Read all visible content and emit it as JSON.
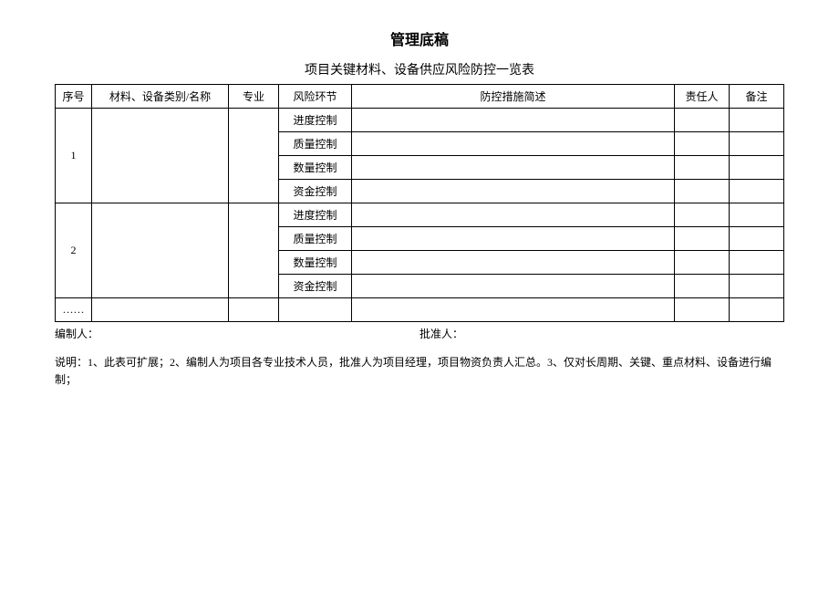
{
  "title": "管理底稿",
  "subtitle": "项目关键材料、设备供应风险防控一览表",
  "headers": {
    "seq": "序号",
    "name": "材料、设备类别/名称",
    "major": "专业",
    "risk": "风险环节",
    "measure": "防控措施简述",
    "person": "责任人",
    "remark": "备注"
  },
  "groups": [
    {
      "seq": "1",
      "name": "",
      "major": "",
      "risks": [
        "进度控制",
        "质量控制",
        "数量控制",
        "资金控制"
      ]
    },
    {
      "seq": "2",
      "name": "",
      "major": "",
      "risks": [
        "进度控制",
        "质量控制",
        "数量控制",
        "资金控制"
      ]
    }
  ],
  "ellipsis": "……",
  "footer": {
    "compiler": "编制人：",
    "approver": "批准人："
  },
  "note": "说明：1、此表可扩展；2、编制人为项目各专业技术人员，批准人为项目经理，项目物资负责人汇总。3、仅对长周期、关键、重点材料、设备进行编制；"
}
